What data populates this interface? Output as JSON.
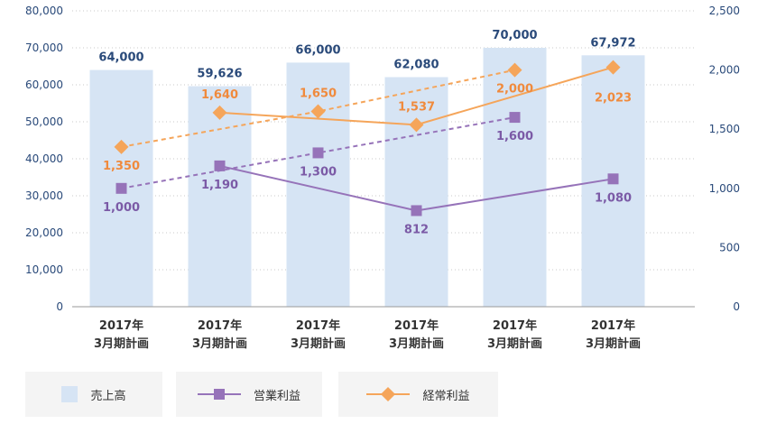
{
  "chart_data": {
    "type": "bar",
    "categories": [
      [
        "2017年",
        "3月期計画"
      ],
      [
        "2017年",
        "3月期計画"
      ],
      [
        "2017年",
        "3月期計画"
      ],
      [
        "2017年",
        "3月期計画"
      ],
      [
        "2017年",
        "3月期計画"
      ],
      [
        "2017年",
        "3月期計画"
      ]
    ],
    "left_axis": {
      "ticks": [
        "0",
        "10,000",
        "20,000",
        "30,000",
        "40,000",
        "50,000",
        "60,000",
        "70,000",
        "80,000"
      ],
      "ylim": [
        0,
        80000
      ]
    },
    "right_axis": {
      "ticks": [
        "0",
        "500",
        "1,000",
        "1,500",
        "2,000",
        "2,500"
      ],
      "ylim": [
        0,
        2500
      ]
    },
    "series": [
      {
        "name": "売上高",
        "type": "bar",
        "axis": "left",
        "color": "#d6e4f4",
        "values": [
          64000,
          59626,
          66000,
          62080,
          70000,
          67972
        ],
        "labels": [
          "64,000",
          "59,626",
          "66,000",
          "62,080",
          "70,000",
          "67,972"
        ]
      },
      {
        "name": "営業利益",
        "type": "line",
        "axis": "right",
        "color": "#9673b9",
        "marker": "square",
        "plan_values": [
          1000,
          1300,
          1600
        ],
        "plan_labels": [
          "1,000",
          "1,300",
          "1,600"
        ],
        "actual_values": [
          1190,
          812,
          1080
        ],
        "actual_labels": [
          "1,190",
          "812",
          "1,080"
        ]
      },
      {
        "name": "経常利益",
        "type": "line",
        "axis": "right",
        "color": "#f5a55a",
        "marker": "diamond",
        "plan_values": [
          1350,
          1650,
          2000
        ],
        "plan_labels": [
          "1,350",
          "1,650",
          "2,000"
        ],
        "actual_values": [
          1640,
          1537,
          2023
        ],
        "actual_labels": [
          "1,640",
          "1,537",
          "2,023"
        ]
      }
    ],
    "grid": "horizontal-dotted",
    "legend_position": "bottom"
  },
  "legend": {
    "items": [
      {
        "label": "売上高"
      },
      {
        "label": "営業利益"
      },
      {
        "label": "経常利益"
      }
    ]
  },
  "colors": {
    "bar": "#d6e4f4",
    "operating": "#9673b9",
    "ordinary": "#f5a55a",
    "axis_text": "#2a4a7a"
  }
}
